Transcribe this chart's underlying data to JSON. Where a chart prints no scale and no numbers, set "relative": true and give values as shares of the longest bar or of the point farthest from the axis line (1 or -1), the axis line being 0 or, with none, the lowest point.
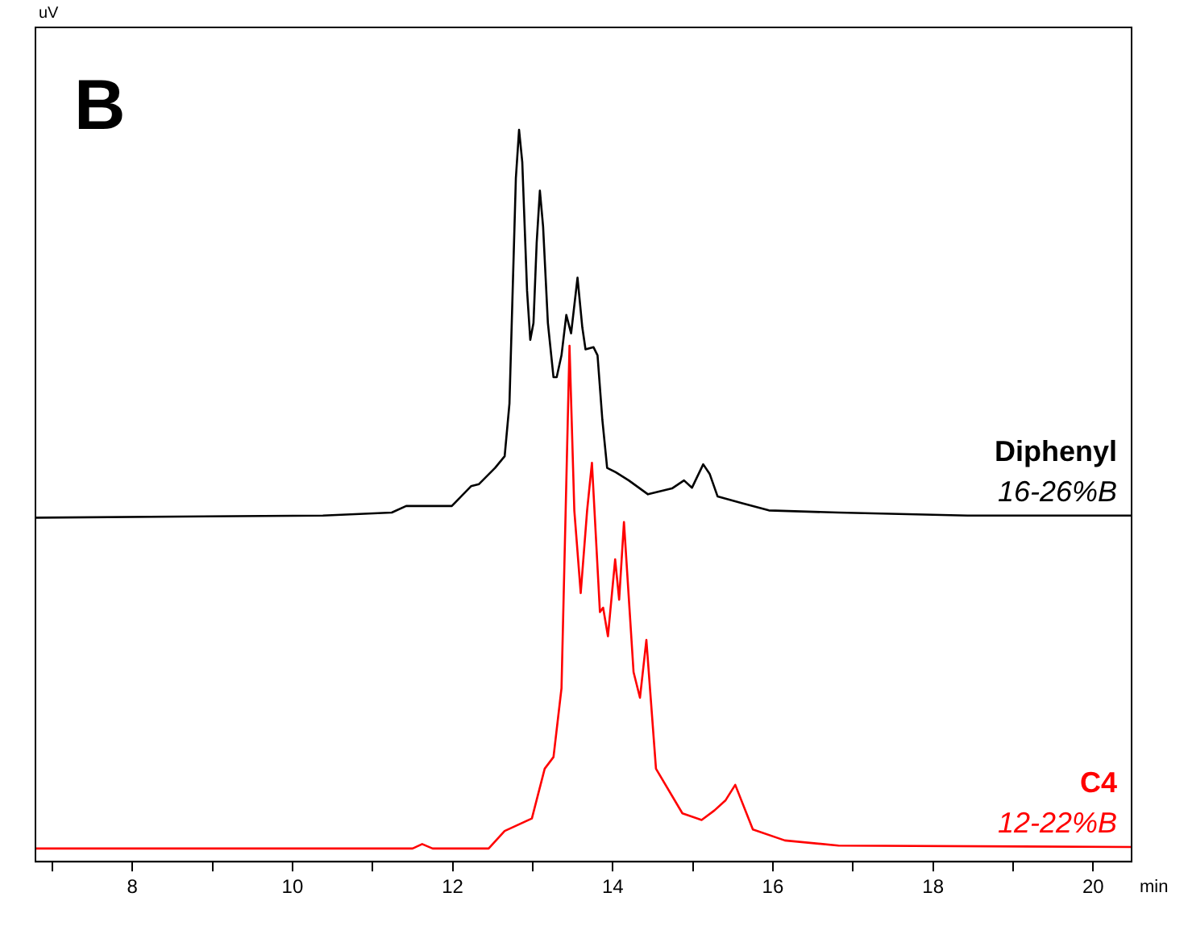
{
  "chart_data": {
    "type": "line",
    "title": "B",
    "xlabel": "min",
    "relative": true,
    "xlim": [
      6.79,
      20.48
    ],
    "xticks": [
      {
        "value": 7,
        "label": null
      },
      8,
      {
        "value": 9,
        "label": null
      },
      10,
      {
        "value": 11,
        "label": null
      },
      12,
      {
        "value": 13,
        "label": null
      },
      14,
      {
        "value": 15,
        "label": null
      },
      16,
      {
        "value": 17,
        "label": null
      },
      18,
      {
        "value": 19,
        "label": null
      },
      20
    ],
    "grid": false,
    "legend": false,
    "marker": "none",
    "line_style": "solid",
    "series": [
      {
        "name": "Diphenyl",
        "color": "#000000",
        "x": [
          6.79,
          10.38,
          11.24,
          11.42,
          11.99,
          12.23,
          12.33,
          12.53,
          12.65,
          12.71,
          12.75,
          12.79,
          12.83,
          12.87,
          12.93,
          12.97,
          13.01,
          13.05,
          13.09,
          13.13,
          13.19,
          13.26,
          13.3,
          13.36,
          13.42,
          13.48,
          13.56,
          13.62,
          13.66,
          13.76,
          13.81,
          13.87,
          13.93,
          14.04,
          14.2,
          14.44,
          14.74,
          14.89,
          14.99,
          15.13,
          15.21,
          15.31,
          15.61,
          15.95,
          16.82,
          18.43,
          20.48
        ],
        "values": [
          0.47,
          0.473,
          0.477,
          0.486,
          0.486,
          0.513,
          0.516,
          0.538,
          0.554,
          0.626,
          0.78,
          0.934,
          1.0,
          0.956,
          0.78,
          0.713,
          0.736,
          0.846,
          0.917,
          0.868,
          0.736,
          0.662,
          0.662,
          0.692,
          0.747,
          0.722,
          0.798,
          0.73,
          0.7,
          0.703,
          0.692,
          0.604,
          0.538,
          0.532,
          0.521,
          0.502,
          0.51,
          0.521,
          0.511,
          0.543,
          0.53,
          0.499,
          0.49,
          0.48,
          0.477,
          0.473,
          0.473
        ]
      },
      {
        "name": "C4",
        "color": "#ff0000",
        "x": [
          6.79,
          11.5,
          11.62,
          11.75,
          12.45,
          12.65,
          12.99,
          13.15,
          13.26,
          13.36,
          13.46,
          13.52,
          13.6,
          13.68,
          13.74,
          13.84,
          13.88,
          13.94,
          14.03,
          14.08,
          14.14,
          14.26,
          14.34,
          14.42,
          14.54,
          14.87,
          15.11,
          15.27,
          15.41,
          15.53,
          15.75,
          16.15,
          16.82,
          20.48
        ],
        "values": [
          0.018,
          0.018,
          0.024,
          0.018,
          0.018,
          0.042,
          0.059,
          0.127,
          0.143,
          0.237,
          0.705,
          0.48,
          0.367,
          0.48,
          0.545,
          0.341,
          0.347,
          0.308,
          0.413,
          0.358,
          0.464,
          0.259,
          0.224,
          0.303,
          0.127,
          0.066,
          0.057,
          0.07,
          0.084,
          0.105,
          0.044,
          0.029,
          0.022,
          0.02
        ]
      }
    ],
    "annotations": [
      "uV",
      {
        "text": "16-26%B",
        "x": 20.48,
        "y": 0.473
      },
      {
        "text": "12-22%B",
        "x": 20.48,
        "y": 0.02
      }
    ]
  }
}
